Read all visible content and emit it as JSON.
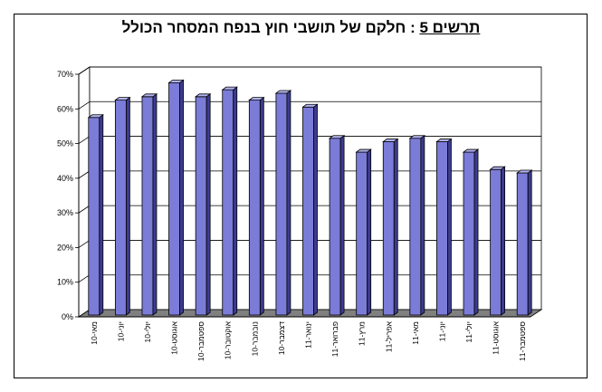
{
  "chart_data": {
    "type": "bar",
    "title": {
      "prefix": "תרשים 5",
      "separator": " : ",
      "text": "חלקם של תושבי חוץ בנפח המסחר הכולל"
    },
    "categories": [
      "מאי-10",
      "יוני-10",
      "יולי-10",
      "אוגוסט-10",
      "ספטמבר-10",
      "אוקטובר-10",
      "נובמבר-10",
      "דצמבר-10",
      "ינואר-11",
      "פברואר-11",
      "מרץ-11",
      "אפריל-11",
      "מאי-11",
      "יוני-11",
      "יולי-11",
      "אוגוסט-11",
      "ספטמבר-11"
    ],
    "values": [
      57,
      62,
      63,
      67,
      63,
      65,
      62,
      64,
      60,
      51,
      47,
      50,
      51,
      50,
      47,
      42,
      41
    ],
    "unit": "%",
    "ylim": [
      0,
      70
    ],
    "yticks": [
      "0%",
      "10%",
      "20%",
      "30%",
      "40%",
      "50%",
      "60%",
      "70%"
    ],
    "grid": true,
    "colors": {
      "bar_front": "#7b7bd8",
      "bar_side": "#3c3c90",
      "bar_top": "#b2b2f0",
      "wall": "#ffffff",
      "floor": "#808080"
    }
  }
}
